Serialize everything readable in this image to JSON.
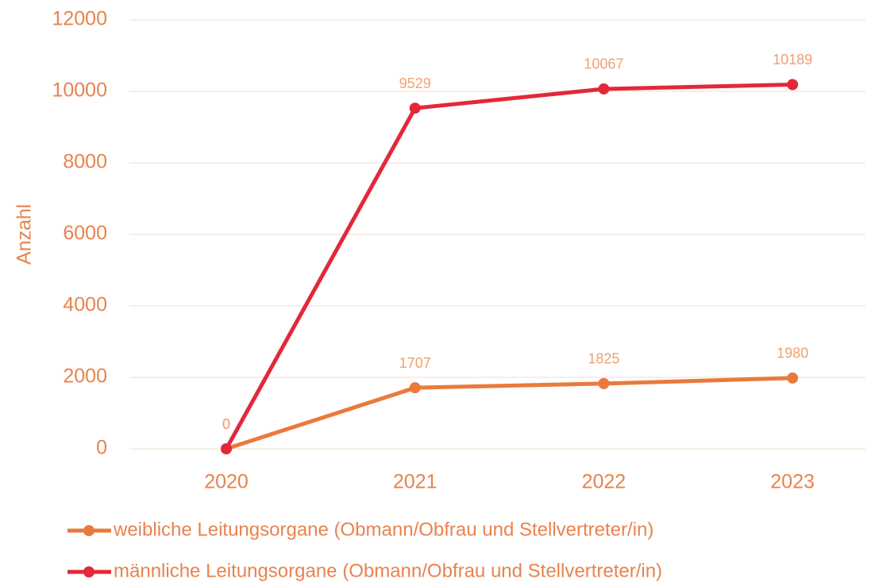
{
  "chart_data": {
    "type": "line",
    "y_label": "Anzahl",
    "categories": [
      "2020",
      "2021",
      "2022",
      "2023"
    ],
    "series": [
      {
        "name": "weibliche Leitungsorgane (Obmann/Obfrau und Stellvertreter/in)",
        "color": "#ea7a3c",
        "values": [
          0,
          1707,
          1825,
          1980
        ]
      },
      {
        "name": "männliche Leitungsorgane (Obmann/Obfrau und Stellvertreter/in)",
        "color": "#e3283a",
        "values": [
          0,
          9529,
          10067,
          10189
        ]
      }
    ],
    "ylim": [
      0,
      12000
    ],
    "yticks": [
      0,
      2000,
      4000,
      6000,
      8000,
      10000,
      12000
    ],
    "grid": true,
    "legend": "bottom"
  }
}
